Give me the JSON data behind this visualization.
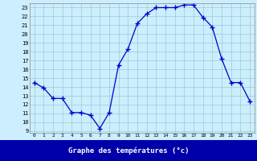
{
  "hours": [
    0,
    1,
    2,
    3,
    4,
    5,
    6,
    7,
    8,
    9,
    10,
    11,
    12,
    13,
    14,
    15,
    16,
    17,
    18,
    19,
    20,
    21,
    22,
    23
  ],
  "temperatures": [
    14.5,
    13.9,
    12.7,
    12.7,
    11.1,
    11.1,
    10.8,
    9.3,
    11.1,
    16.5,
    18.3,
    21.2,
    22.3,
    23.0,
    23.0,
    23.0,
    23.3,
    23.3,
    21.9,
    20.8,
    17.2,
    14.5,
    14.5,
    12.4
  ],
  "bg_color": "#cceeff",
  "grid_color": "#99cccc",
  "line_color": "#0000cc",
  "marker_color": "#0000cc",
  "xlabel": "Graphe des températures (°c)",
  "banner_color": "#0000aa",
  "ylim": [
    8.8,
    23.5
  ],
  "xlim": [
    -0.5,
    23.5
  ],
  "yticks": [
    9,
    10,
    11,
    12,
    13,
    14,
    15,
    16,
    17,
    18,
    19,
    20,
    21,
    22,
    23
  ],
  "xticks": [
    0,
    1,
    2,
    3,
    4,
    5,
    6,
    7,
    8,
    9,
    10,
    11,
    12,
    13,
    14,
    15,
    16,
    17,
    18,
    19,
    20,
    21,
    22,
    23
  ]
}
